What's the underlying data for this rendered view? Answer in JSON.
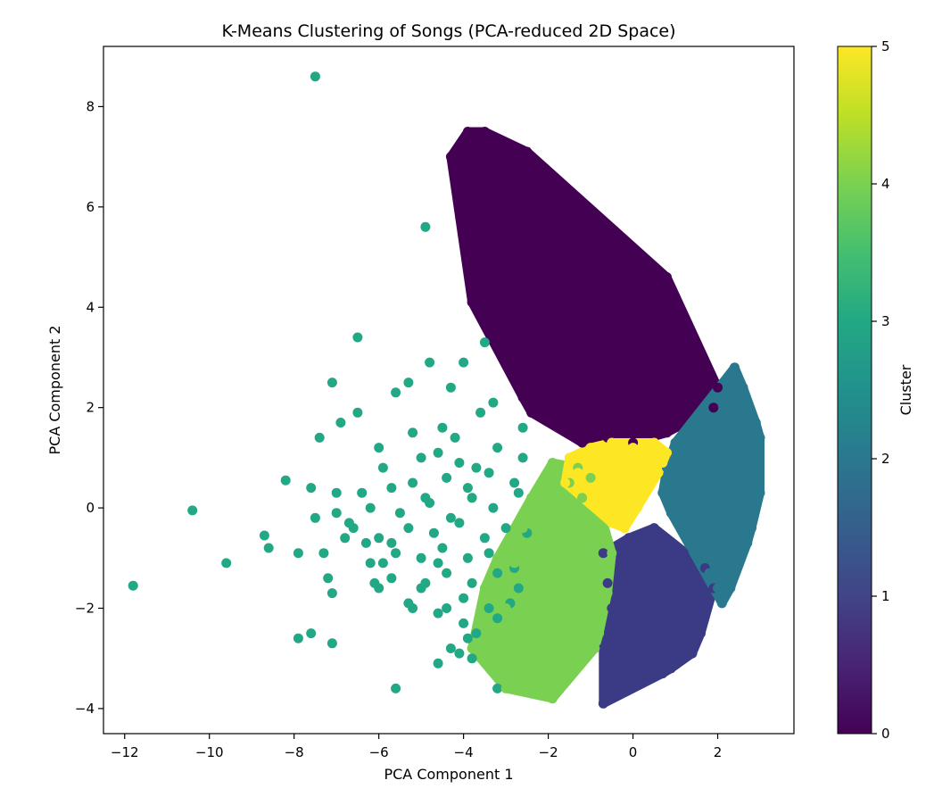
{
  "chart_data": {
    "type": "scatter",
    "title": "K-Means Clustering of Songs (PCA-reduced 2D Space)",
    "xlabel": "PCA Component 1",
    "ylabel": "PCA Component 2",
    "xlim": [
      -12.5,
      3.8
    ],
    "ylim": [
      -4.5,
      9.2
    ],
    "x_ticks": [
      -12,
      -10,
      -8,
      -6,
      -4,
      -2,
      0,
      2
    ],
    "y_ticks": [
      -4,
      -2,
      0,
      2,
      4,
      6,
      8
    ],
    "grid": false,
    "colorbar": {
      "label": "Cluster",
      "range": [
        0,
        5
      ],
      "ticks": [
        0,
        1,
        2,
        3,
        4,
        5
      ],
      "colormap": "viridis"
    },
    "cluster_colors": {
      "0": "#440154",
      "1": "#3b3a85",
      "2": "#2a788e",
      "3": "#22a884",
      "4": "#7ad151",
      "5": "#fde725"
    },
    "series": [
      {
        "cluster": 0,
        "x": [
          -3.9,
          -3.5,
          -2.5,
          -2.9,
          -3.0,
          -2.3,
          -2.0,
          -2.7,
          -2.9,
          -2.5,
          -1.5,
          -1.4,
          -4.3,
          -3.9,
          -3.8,
          -1.1,
          -0.6,
          -0.5,
          -0.4,
          0.8,
          0.7,
          0.0,
          -1.0,
          -0.5,
          -0.2,
          -0.9,
          0.2,
          1.0,
          -1.6,
          -2.2,
          -1.9,
          -3.0,
          -2.8,
          -0.8,
          -1.3,
          0.0,
          0.5,
          0.8,
          1.2,
          1.5,
          1.8,
          -2.5,
          -2.0,
          -1.5,
          -1.0,
          -0.5,
          0.3,
          0.9,
          1.4,
          -2.2,
          -1.8,
          -1.2,
          -0.7,
          -0.1,
          0.6,
          1.1,
          1.6,
          -2.0,
          -1.4,
          -0.8,
          -0.2,
          0.4,
          1.0,
          1.3,
          -1.6,
          -1.0,
          -0.4,
          0.2,
          0.8,
          -1.2,
          -0.6,
          0.0,
          0.6,
          -2.6,
          -2.4,
          2.0,
          1.9
        ],
        "y": [
          7.5,
          7.5,
          7.1,
          7.1,
          6.9,
          6.6,
          6.4,
          6.1,
          6.1,
          5.4,
          5.9,
          5.4,
          7.0,
          4.9,
          4.1,
          4.9,
          4.8,
          4.9,
          4.7,
          4.6,
          4.4,
          4.3,
          4.6,
          4.3,
          4.1,
          4.2,
          3.8,
          3.8,
          4.3,
          4.5,
          3.8,
          3.4,
          3.3,
          3.3,
          3.0,
          3.5,
          3.4,
          3.2,
          3.1,
          2.9,
          2.7,
          2.8,
          3.0,
          3.1,
          3.1,
          3.0,
          3.1,
          2.9,
          2.8,
          2.4,
          2.6,
          2.5,
          2.6,
          2.5,
          2.6,
          2.4,
          2.3,
          2.0,
          2.1,
          2.2,
          2.1,
          2.2,
          2.0,
          2.1,
          1.6,
          1.7,
          1.6,
          1.7,
          1.5,
          1.3,
          1.4,
          1.3,
          1.5,
          2.2,
          1.9,
          2.4,
          2.0
        ]
      },
      {
        "cluster": 1,
        "x": [
          -0.7,
          -0.1,
          0.5,
          0.8,
          1.2,
          1.7,
          0.3,
          -0.6,
          0.0,
          0.7,
          1.3,
          -0.5,
          0.2,
          0.9,
          1.5,
          1.9,
          -0.3,
          0.4,
          1.0,
          1.6,
          -0.7,
          0.0,
          0.6,
          1.2,
          -0.4,
          0.3,
          0.9,
          1.4,
          0.1,
          0.7,
          -0.7
        ],
        "y": [
          -0.9,
          -0.6,
          -0.4,
          -0.7,
          -0.9,
          -1.2,
          -1.3,
          -1.5,
          -1.2,
          -1.1,
          -1.4,
          -2.0,
          -1.9,
          -1.8,
          -1.7,
          -1.6,
          -2.5,
          -2.4,
          -2.4,
          -2.5,
          -2.8,
          -2.9,
          -3.0,
          -2.8,
          -3.2,
          -3.1,
          -3.2,
          -2.9,
          -3.3,
          -3.3,
          -3.9
        ]
      },
      {
        "cluster": 2,
        "x": [
          2.4,
          2.6,
          2.9,
          3.0,
          2.6,
          2.4,
          3.0,
          2.3,
          2.6,
          2.9,
          2.8,
          2.3,
          1.0,
          1.4,
          1.8,
          2.2,
          0.8,
          1.2,
          1.7,
          2.1,
          0.7,
          1.1,
          1.6,
          2.0,
          2.5,
          0.9,
          1.3,
          1.9,
          2.3,
          1.5,
          2.0,
          2.4,
          1.8,
          2.2,
          2.7,
          2.0,
          2.1
        ],
        "y": [
          2.8,
          2.4,
          1.7,
          1.4,
          1.2,
          0.9,
          0.3,
          0.7,
          -0.1,
          0.0,
          -0.4,
          -1.6,
          1.3,
          1.6,
          1.8,
          2.1,
          0.8,
          1.0,
          1.2,
          1.5,
          0.3,
          0.5,
          0.4,
          0.6,
          0.2,
          -0.1,
          -0.3,
          -0.2,
          -0.5,
          -0.8,
          -0.9,
          -1.1,
          -1.3,
          -1.4,
          -0.7,
          -1.6,
          -1.9
        ]
      },
      {
        "cluster": 3,
        "x": [
          -7.5,
          -4.9,
          -6.5,
          -7.1,
          -11.8,
          -10.4,
          -9.6,
          -8.7,
          -8.6,
          -8.2,
          -7.9,
          -7.9,
          -7.6,
          -7.3,
          -7.2,
          -7.1,
          -7.1,
          -6.8,
          -6.6,
          -6.3,
          -6.1,
          -6.0,
          -5.9,
          -5.7,
          -5.6,
          -5.2,
          -4.9,
          -4.6,
          -4.4,
          -4.0,
          -3.9,
          -3.8,
          -3.2,
          -5.3,
          -4.3,
          -5.6,
          -4.8,
          -4.0,
          -3.5,
          -6.5,
          -6.9,
          -7.4,
          -7.6,
          -7.0,
          -6.0,
          -5.2,
          -4.5,
          -4.2,
          -3.6,
          -3.3,
          -2.6,
          -5.9,
          -5.0,
          -4.6,
          -4.1,
          -3.7,
          -3.2,
          -2.6,
          -6.4,
          -5.7,
          -5.2,
          -4.9,
          -4.4,
          -3.9,
          -3.4,
          -2.8,
          -7.5,
          -7.0,
          -6.7,
          -6.2,
          -5.5,
          -4.8,
          -4.3,
          -3.8,
          -3.3,
          -2.7,
          -6.0,
          -5.3,
          -4.7,
          -4.1,
          -3.5,
          -3.0,
          -2.5,
          -6.2,
          -5.6,
          -5.0,
          -4.5,
          -3.9,
          -3.4,
          -2.8,
          -5.7,
          -5.0,
          -4.4,
          -3.8,
          -3.2,
          -2.7,
          -5.3,
          -4.6,
          -4.0,
          -3.4,
          -2.9,
          -4.3,
          -3.7,
          -3.2,
          -4.6,
          -4.1
        ],
        "y": [
          8.6,
          5.6,
          3.4,
          2.5,
          -1.55,
          -0.05,
          -1.1,
          -0.55,
          -0.8,
          0.55,
          -0.9,
          -2.6,
          -2.5,
          -0.9,
          -1.4,
          -1.7,
          -2.7,
          -0.6,
          -0.4,
          -0.7,
          -1.5,
          -1.6,
          -1.1,
          -0.7,
          -3.6,
          -2.0,
          -1.5,
          -1.1,
          -2.0,
          -2.3,
          -2.6,
          -3.0,
          -3.6,
          2.5,
          2.4,
          2.3,
          2.9,
          2.9,
          3.3,
          1.9,
          1.7,
          1.4,
          0.4,
          0.3,
          1.2,
          1.5,
          1.6,
          1.4,
          1.9,
          2.1,
          1.6,
          0.8,
          1.0,
          1.1,
          0.9,
          0.8,
          1.2,
          1.0,
          0.3,
          0.4,
          0.5,
          0.2,
          0.6,
          0.4,
          0.7,
          0.5,
          -0.2,
          -0.1,
          -0.3,
          0.0,
          -0.1,
          0.1,
          -0.2,
          0.2,
          0.0,
          0.3,
          -0.6,
          -0.4,
          -0.5,
          -0.3,
          -0.6,
          -0.4,
          -0.5,
          -1.1,
          -0.9,
          -1.0,
          -0.8,
          -1.0,
          -0.9,
          -1.2,
          -1.4,
          -1.6,
          -1.3,
          -1.5,
          -1.3,
          -1.6,
          -1.9,
          -2.1,
          -1.8,
          -2.0,
          -1.9,
          -2.8,
          -2.5,
          -2.2,
          -3.1,
          -2.9
        ]
      },
      {
        "cluster": 4,
        "x": [
          -1.9,
          -3.0,
          -3.8,
          -2.0,
          -2.5,
          -1.5,
          -3.3,
          -2.2,
          -1.2,
          -3.0,
          -2.7,
          -2.0,
          -1.4,
          -0.8,
          -3.5,
          -3.1,
          -2.5,
          -1.8,
          -1.2,
          -0.6,
          -3.2,
          -2.8,
          -2.2,
          -1.6,
          -1.0,
          -0.5,
          -2.6,
          -2.0,
          -1.4,
          -0.8,
          -2.4,
          -1.8,
          -1.2,
          -2.1,
          -1.5,
          -1.0,
          -1.9,
          -1.3,
          -1.7,
          -1.1,
          -0.9,
          -0.7,
          -1.5,
          -2.2,
          -3.0
        ],
        "y": [
          -3.8,
          -3.6,
          -2.8,
          -3.1,
          -2.5,
          -2.8,
          -2.4,
          -2.4,
          -2.7,
          -2.0,
          -2.1,
          -2.3,
          -2.2,
          -2.5,
          -1.6,
          -1.7,
          -1.5,
          -1.8,
          -1.6,
          -1.7,
          -1.0,
          -1.1,
          -0.9,
          -1.0,
          -1.2,
          -0.9,
          -0.4,
          -0.3,
          -0.5,
          -0.4,
          0.2,
          0.1,
          0.2,
          0.6,
          0.5,
          0.6,
          0.9,
          0.8,
          0.3,
          -0.2,
          -2.8,
          -1.3,
          -1.4,
          -2.9,
          -3.0
        ]
      },
      {
        "cluster": 5,
        "x": [
          -1.5,
          -1.0,
          -0.5,
          0.0,
          0.5,
          0.8,
          -1.3,
          -0.8,
          -0.3,
          0.2,
          0.6,
          -1.0,
          -0.6,
          -0.1,
          0.3,
          -0.7,
          -0.3,
          0.1,
          -0.5,
          -0.2,
          0.7,
          -1.6
        ],
        "y": [
          1.0,
          1.2,
          1.3,
          1.2,
          1.3,
          1.1,
          0.7,
          0.8,
          0.9,
          0.8,
          0.7,
          0.3,
          0.4,
          0.5,
          0.3,
          0.0,
          0.1,
          0.0,
          -0.3,
          -0.4,
          0.9,
          0.5
        ]
      }
    ]
  }
}
